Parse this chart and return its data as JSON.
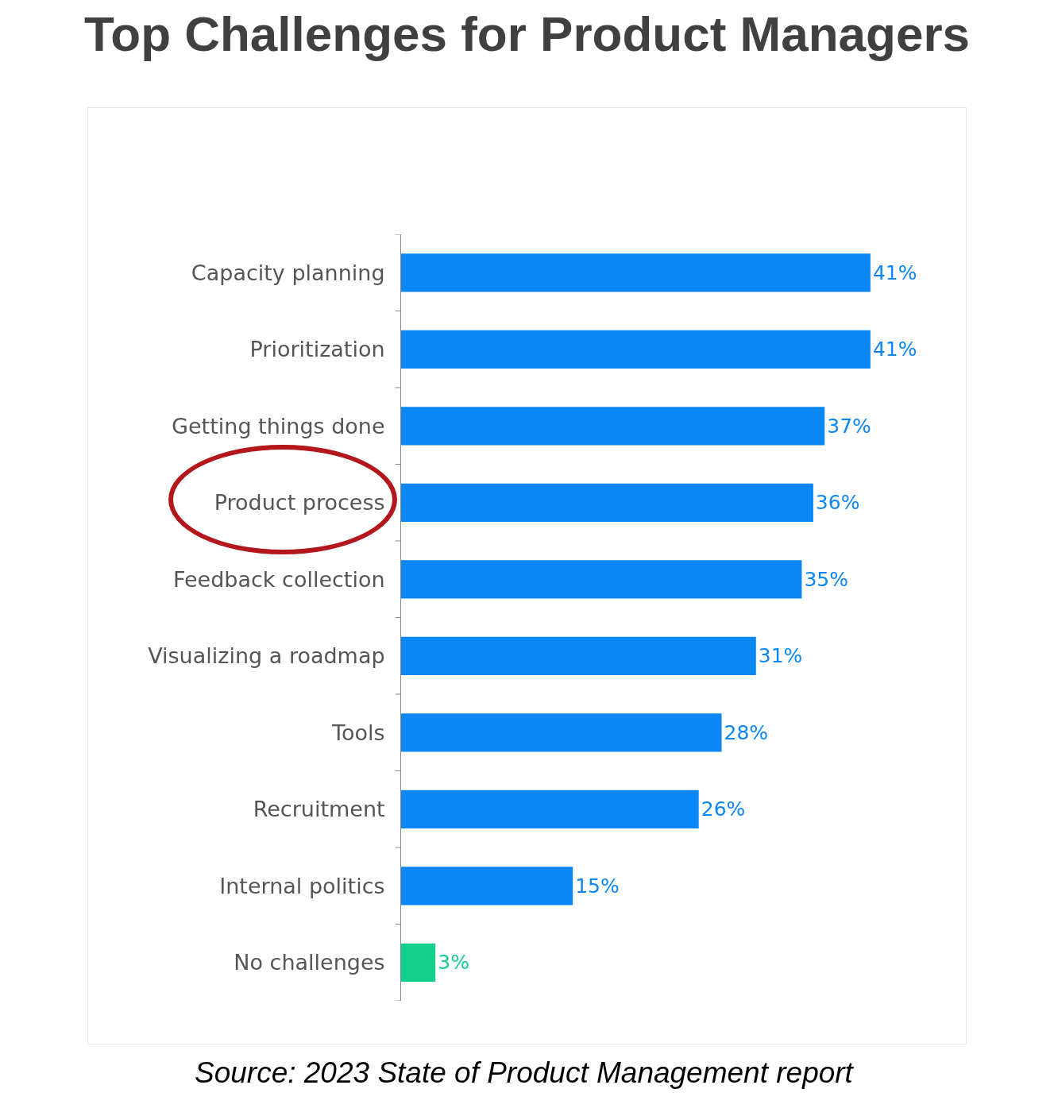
{
  "chart_data": {
    "type": "bar",
    "orientation": "horizontal",
    "title": "Top Challenges for Product Managers",
    "categories": [
      "Capacity planning",
      "Prioritization",
      "Getting things done",
      "Product process",
      "Feedback collection",
      "Visualizing a roadmap",
      "Tools",
      "Recruitment",
      "Internal politics",
      "No challenges"
    ],
    "values": [
      41,
      41,
      37,
      36,
      35,
      31,
      28,
      26,
      15,
      3
    ],
    "colors": [
      "#0a86f5",
      "#0a86f5",
      "#0a86f5",
      "#0a86f5",
      "#0a86f5",
      "#0a86f5",
      "#0a86f5",
      "#0a86f5",
      "#0a86f5",
      "#12d08c"
    ],
    "value_labels": [
      "41%",
      "41%",
      "37%",
      "36%",
      "35%",
      "31%",
      "28%",
      "26%",
      "15%",
      "3%"
    ],
    "annotations": [
      "Source: 2023 State of Product Management report"
    ]
  }
}
